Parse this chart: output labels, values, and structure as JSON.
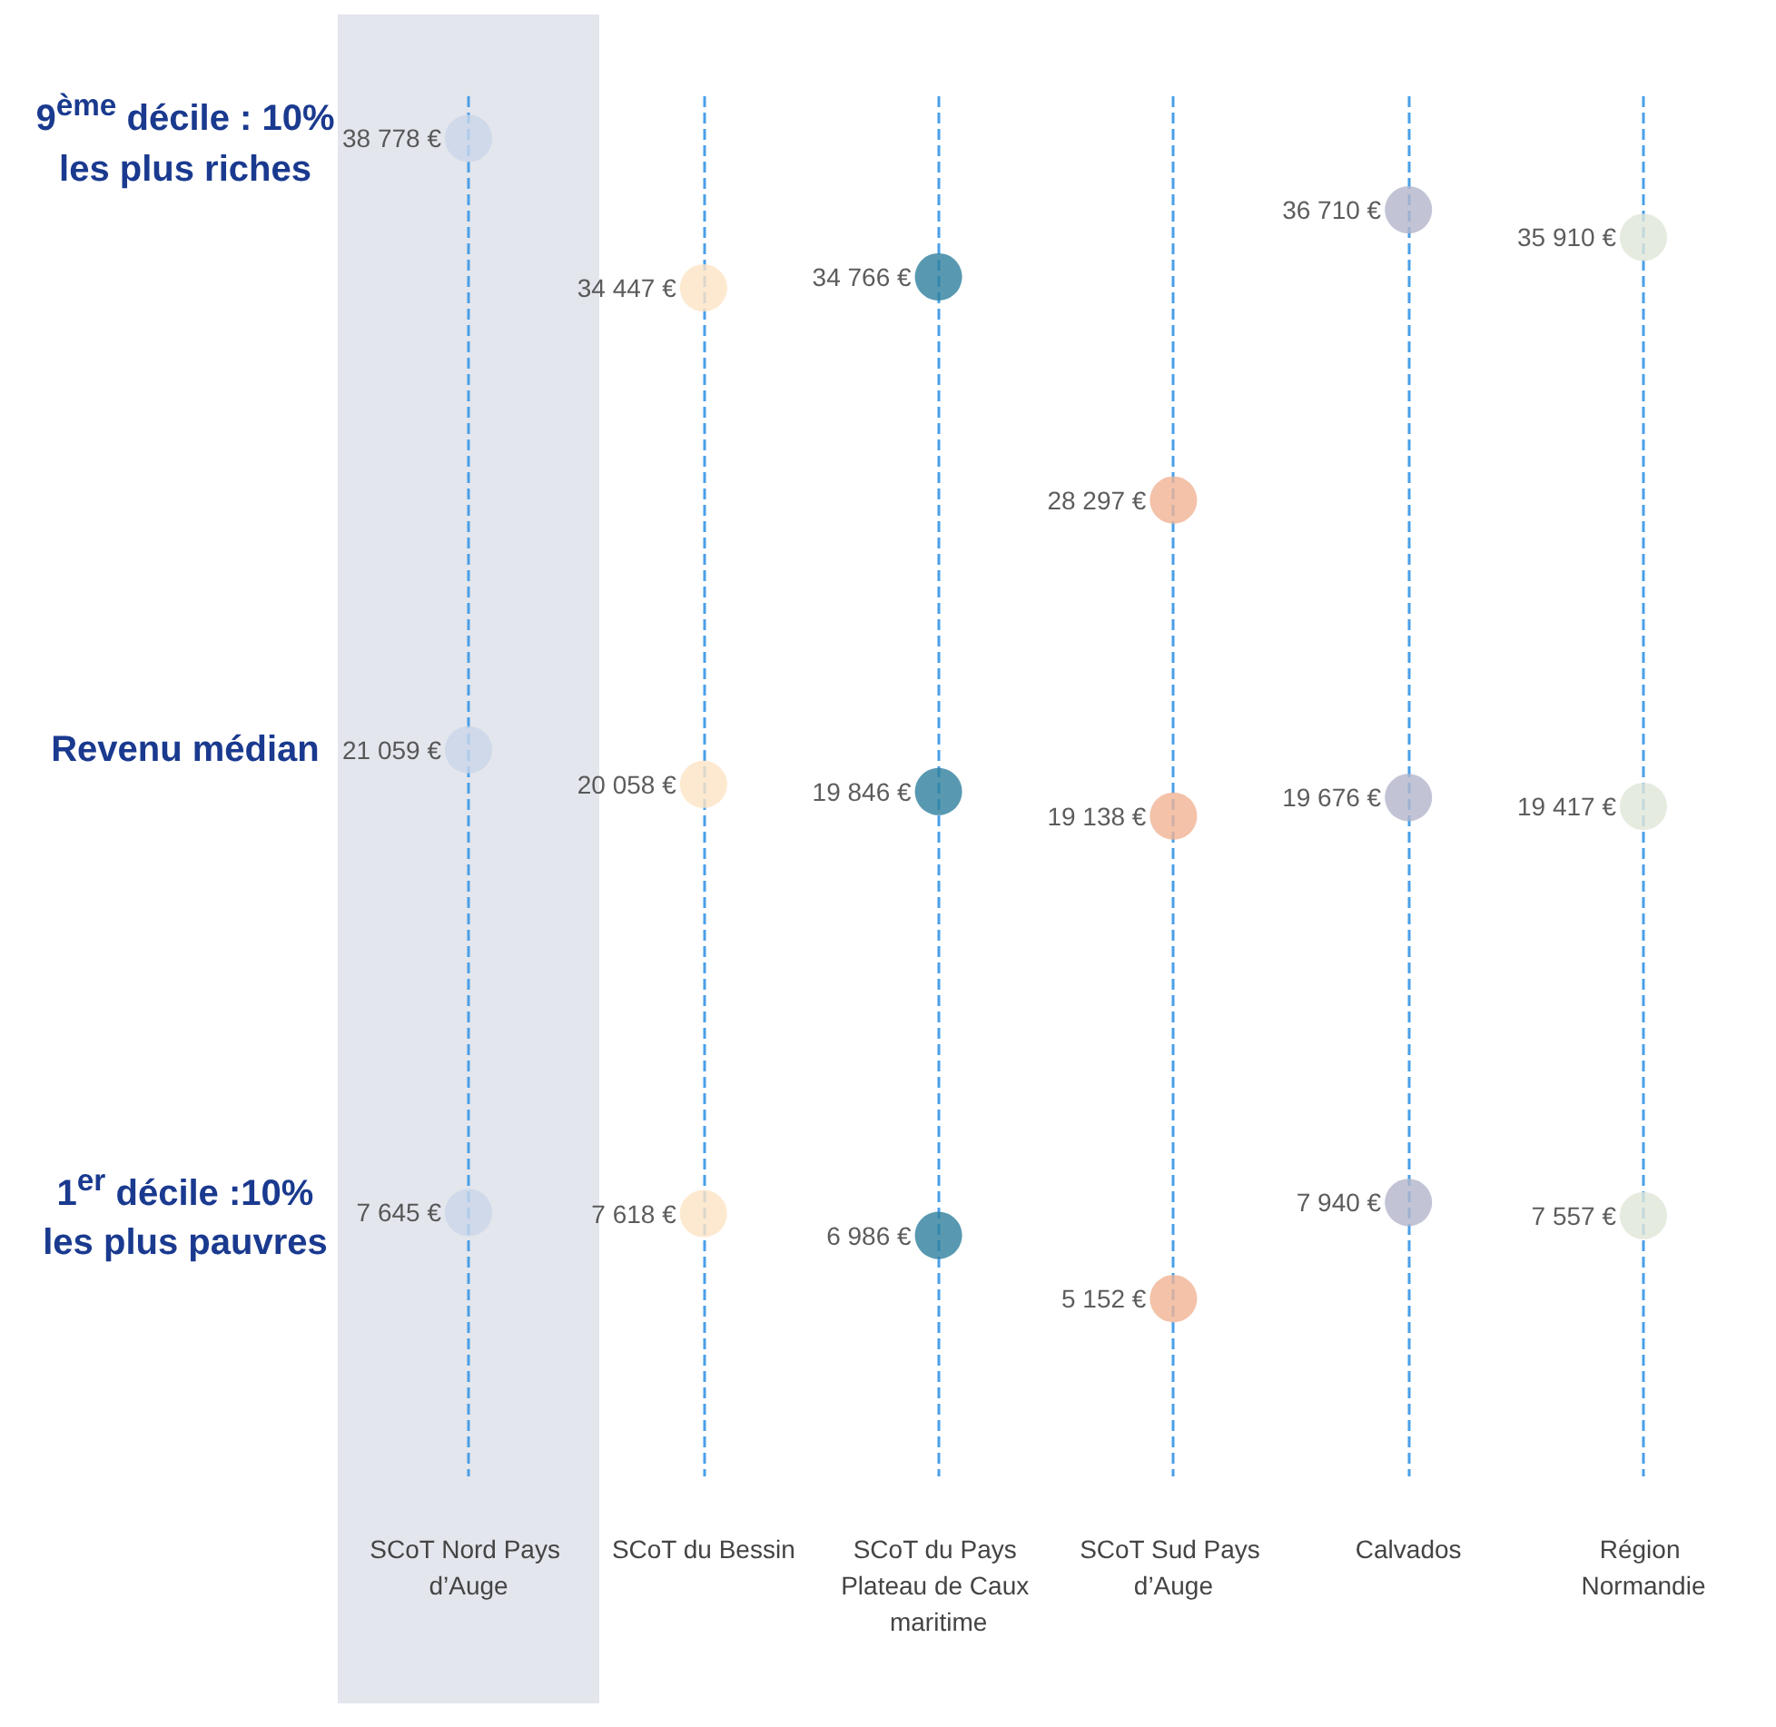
{
  "chart_data": {
    "type": "scatter",
    "categories": [
      "SCoT Nord Pays d’Auge",
      "SCoT du Bessin",
      "SCoT du Pays Plateau de Caux maritime",
      "SCoT Sud Pays d’Auge",
      "Calvados",
      "Région Normandie"
    ],
    "series": [
      {
        "colors": [
          "#c9d6ea",
          "#fde3c4",
          "#2e7f9e",
          "#f0b394",
          "#b3b5cb",
          "#e0e6d8"
        ],
        "values": [
          38778,
          34447,
          34766,
          28297,
          36710,
          35910
        ],
        "value_labels": [
          "38 778 €",
          "34 447 €",
          "34 766 €",
          "28 297 €",
          "36 710 €",
          "35 910 €"
        ]
      },
      {
        "colors": [
          "#c9d6ea",
          "#fde3c4",
          "#2e7f9e",
          "#f0b394",
          "#b3b5cb",
          "#e0e6d8"
        ],
        "values": [
          21059,
          20058,
          19846,
          19138,
          19676,
          19417
        ],
        "value_labels": [
          "21 059 €",
          "20 058 €",
          "19 846 €",
          "19 138 €",
          "19 676 €",
          "19 417 €"
        ]
      },
      {
        "colors": [
          "#c9d6ea",
          "#fde3c4",
          "#2e7f9e",
          "#f0b394",
          "#b3b5cb",
          "#e0e6d8"
        ],
        "values": [
          7645,
          7618,
          6986,
          5152,
          7940,
          7557
        ],
        "value_labels": [
          "7 645 €",
          "7 618 €",
          "6 986 €",
          "5 152 €",
          "7 940 €",
          "7 557 €"
        ]
      }
    ],
    "annotations": [
      "9$^{ème}$ décile : 10% les plus riches",
      "Revenu médian",
      "1$^{er}$ décile :10% les plus pauvres"
    ],
    "grid": "x",
    "line_style": "dashed",
    "marker": "circle",
    "bands": [
      {
        "axis": "x",
        "from": "SCoT Nord Pays d’Auge",
        "to": "SCoT Nord Pays d’Auge",
        "color": "#e3e6ec"
      }
    ]
  }
}
